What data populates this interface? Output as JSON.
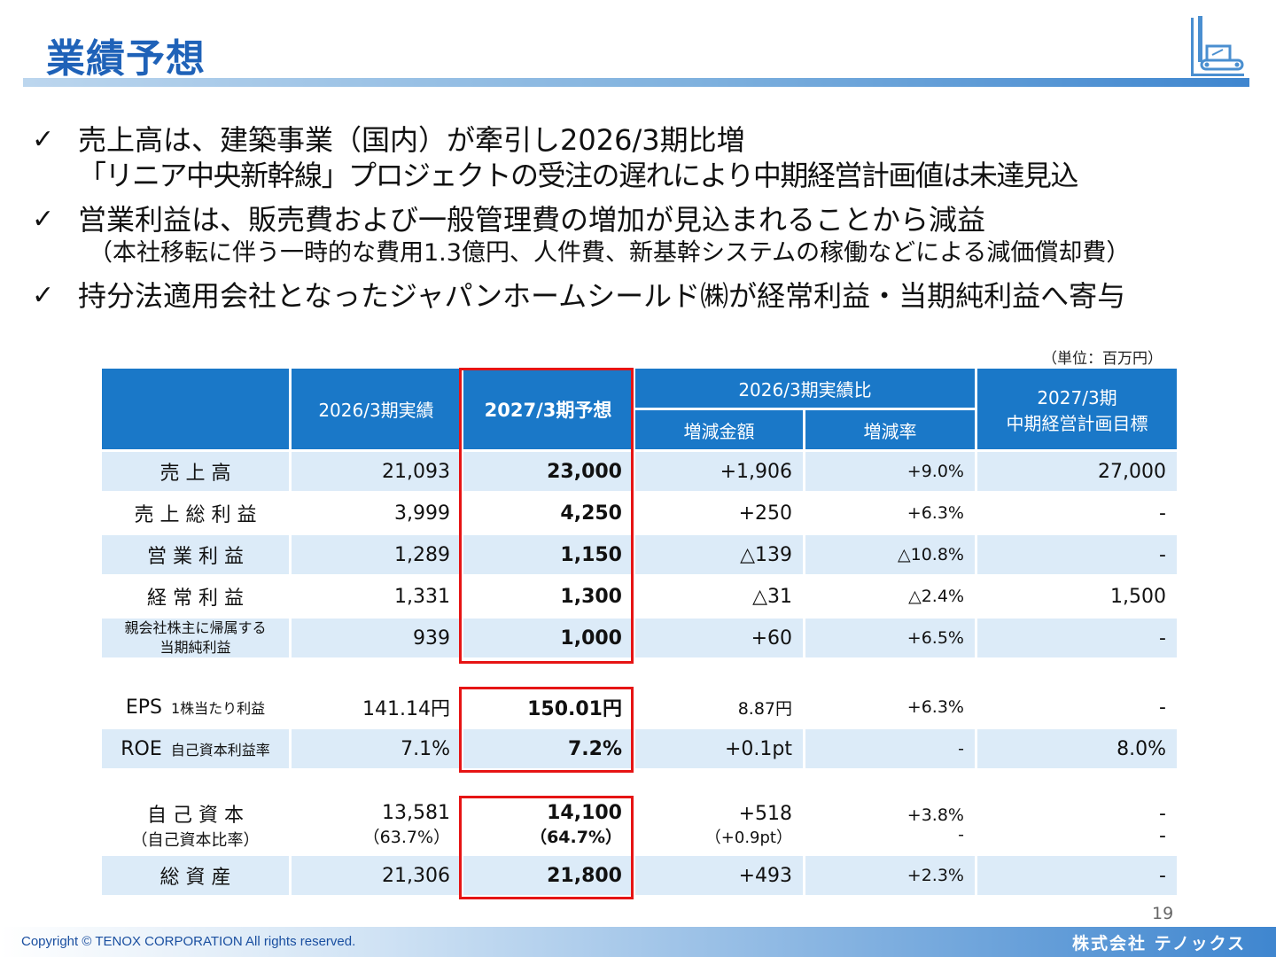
{
  "header": {
    "title": "業績予想"
  },
  "bullets": [
    {
      "check": "✓",
      "lines": [
        "売上高は、建築事業（国内）が牽引し2026/3期比増",
        "「リニア中央新幹線」プロジェクトの受注の遅れにより中期経営計画値は未達見込"
      ]
    },
    {
      "check": "✓",
      "lines": [
        "営業利益は、販売費および一般管理費の増加が見込まれることから減益",
        "（本社移転に伴う一時的な費用1.3億円、人件費、新基幹システムの稼働などによる減価償却費）"
      ]
    },
    {
      "check": "✓",
      "lines": [
        "持分法適用会社となったジャパンホームシールド㈱が経常利益・当期純利益へ寄与"
      ]
    }
  ],
  "unit_note": "（単位：百万円）",
  "table": {
    "headers": {
      "actual": "2026/3期実績",
      "forecast": "2027/3期予想",
      "comparison": "2026/3期実績比",
      "change_amount": "増減金額",
      "change_rate": "増減率",
      "plan_line1": "2027/3期",
      "plan_line2": "中期経営計画目標"
    },
    "block1": [
      {
        "label": "売 上 高",
        "actual": "21,093",
        "forecast": "23,000",
        "diff": "+1,906",
        "rate": "+9.0%",
        "plan": "27,000"
      },
      {
        "label": "売 上 総 利 益",
        "actual": "3,999",
        "forecast": "4,250",
        "diff": "+250",
        "rate": "+6.3%",
        "plan": "-"
      },
      {
        "label": "営 業 利 益",
        "actual": "1,289",
        "forecast": "1,150",
        "diff": "△139",
        "rate": "△10.8%",
        "plan": "-"
      },
      {
        "label": "経 常 利 益",
        "actual": "1,331",
        "forecast": "1,300",
        "diff": "△31",
        "rate": "△2.4%",
        "plan": "1,500"
      },
      {
        "label_line1": "親会社株主に帰属する",
        "label_line2": "当期純利益",
        "actual": "939",
        "forecast": "1,000",
        "diff": "+60",
        "rate": "+6.5%",
        "plan": "-"
      }
    ],
    "block2": [
      {
        "label": "EPS",
        "label_sub": "1株当たり利益",
        "actual": "141.14円",
        "forecast": "150.01円",
        "diff": "8.87円",
        "rate": "+6.3%",
        "plan": "-"
      },
      {
        "label": "ROE",
        "label_sub": "自己資本利益率",
        "actual": "7.1%",
        "forecast": "7.2%",
        "diff": "+0.1pt",
        "rate": "-",
        "plan": "8.0%"
      }
    ],
    "block3": [
      {
        "label_line1": "自 己 資 本",
        "label_line2": "（自己資本比率）",
        "actual_line1": "13,581",
        "actual_line2": "（63.7%）",
        "forecast_line1": "14,100",
        "forecast_line2": "（64.7%）",
        "diff_line1": "+518",
        "diff_line2": "（+0.9pt）",
        "rate_line1": "+3.8%",
        "rate_line2": "-",
        "plan_line1": "-",
        "plan_line2": "-"
      },
      {
        "label": "総 資 産",
        "actual": "21,306",
        "forecast": "21,800",
        "diff": "+493",
        "rate": "+2.3%",
        "plan": "-"
      }
    ]
  },
  "footer": {
    "page_number": "19",
    "copyright": "Copyright © TENOX CORPORATION All rights reserved.",
    "company": "株式会社 テノックス"
  },
  "colors": {
    "title": "#1f62b8",
    "header_fill": "#1a78c8",
    "row_band": "#dcebf8",
    "highlight_border": "#e61414"
  },
  "icons": {
    "logo": "pile-driver-machine-icon",
    "check": "check-mark-icon"
  }
}
